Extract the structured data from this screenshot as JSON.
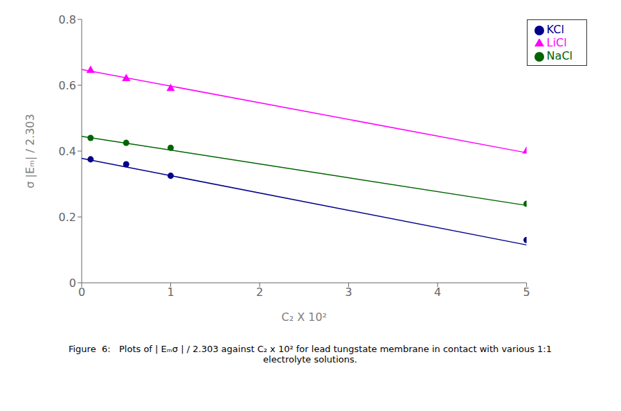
{
  "chart_data": {
    "type": "scatter",
    "xlabel": "C₂ X 10²",
    "ylabel": "σ |Eₘ| / 2.303",
    "xlim": [
      0,
      5
    ],
    "ylim": [
      0,
      0.8
    ],
    "xticks": [
      0,
      1,
      2,
      3,
      4,
      5
    ],
    "yticks": [
      0,
      0.2,
      0.4,
      0.6,
      0.8
    ],
    "grid": false,
    "legend": "upper right",
    "series": [
      {
        "name": "KCl",
        "color": "#00008B",
        "marker": "circle",
        "x": [
          0.1,
          0.5,
          1.0,
          5.0
        ],
        "values": [
          0.375,
          0.36,
          0.325,
          0.13
        ],
        "fit": {
          "x": [
            0,
            5
          ],
          "values": [
            0.378,
            0.115
          ]
        }
      },
      {
        "name": "NaCl",
        "color": "#006400",
        "marker": "circle",
        "x": [
          0.1,
          0.5,
          1.0,
          5.0
        ],
        "values": [
          0.44,
          0.425,
          0.41,
          0.24
        ],
        "fit": {
          "x": [
            0,
            5
          ],
          "values": [
            0.445,
            0.235
          ]
        }
      },
      {
        "name": "LiCl",
        "color": "#FF00FF",
        "marker": "triangle",
        "x": [
          0.1,
          0.5,
          1.0,
          5.0
        ],
        "values": [
          0.645,
          0.62,
          0.59,
          0.4
        ],
        "fit": {
          "x": [
            0,
            5
          ],
          "values": [
            0.648,
            0.395
          ]
        }
      }
    ],
    "annotations": [
      "Figure  6:   Plots of | Eₘσ | / 2.303 against C₂ x 10² for lead tungstate membrane in contact with various 1:1",
      "electrolyte solutions."
    ]
  }
}
